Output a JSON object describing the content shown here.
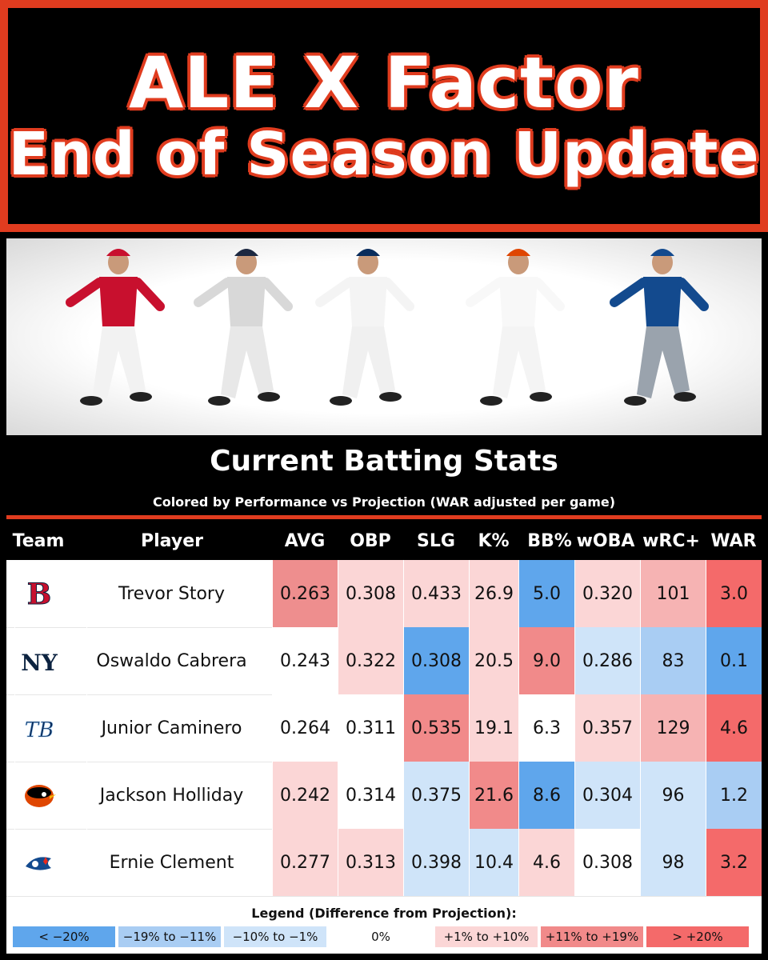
{
  "title": {
    "line1": "ALE X Factor",
    "line2": "End of Season Update"
  },
  "banner": {
    "players": [
      {
        "name": "Trevor Story",
        "jersey": "#c8102e",
        "cap": "#c8102e",
        "pants": "#f2f2f2"
      },
      {
        "name": "Oswaldo Cabrera",
        "jersey": "#d8d8d8",
        "cap": "#1c2841",
        "pants": "#e8e8e8"
      },
      {
        "name": "Junior Caminero",
        "jersey": "#f4f4f4",
        "cap": "#092c5c",
        "pants": "#f0f0f0"
      },
      {
        "name": "Jackson Holliday",
        "jersey": "#f8f8f8",
        "cap": "#df4601",
        "pants": "#f4f4f4"
      },
      {
        "name": "Ernie Clement",
        "jersey": "#134a8e",
        "cap": "#134a8e",
        "pants": "#9aa3ad"
      }
    ]
  },
  "subtitle": "Current Batting Stats",
  "caption": "Colored by Performance vs Projection (WAR adjusted per game)",
  "columns": [
    "Team",
    "Player",
    "AVG",
    "OBP",
    "SLG",
    "K%",
    "BB%",
    "wOBA",
    "wRC+",
    "WAR"
  ],
  "rows": [
    {
      "team": "red-sox-logo",
      "player": "Trevor Story",
      "stats": [
        "0.263",
        "0.308",
        "0.433",
        "26.9",
        "5.0",
        "0.320",
        "101",
        "3.0"
      ],
      "colors": [
        "#ee8e8e",
        "#fbd6d6",
        "#fbd6d6",
        "#fbd6d6",
        "#5fa6ec",
        "#fbd6d6",
        "#f6b3b3",
        "#f46a6a"
      ]
    },
    {
      "team": "yankees-logo",
      "player": "Oswaldo Cabrera",
      "stats": [
        "0.243",
        "0.322",
        "0.308",
        "20.5",
        "9.0",
        "0.286",
        "83",
        "0.1"
      ],
      "colors": [
        "#ffffff",
        "#fbd6d6",
        "#5fa6ec",
        "#fbd6d6",
        "#f18a8a",
        "#cfe4f9",
        "#a9cdf3",
        "#5fa6ec"
      ]
    },
    {
      "team": "rays-logo",
      "player": "Junior Caminero",
      "stats": [
        "0.264",
        "0.311",
        "0.535",
        "19.1",
        "6.3",
        "0.357",
        "129",
        "4.6"
      ],
      "colors": [
        "#ffffff",
        "#ffffff",
        "#f18a8a",
        "#fbd6d6",
        "#ffffff",
        "#fbd6d6",
        "#f6b3b3",
        "#f46a6a"
      ]
    },
    {
      "team": "orioles-logo",
      "player": "Jackson Holliday",
      "stats": [
        "0.242",
        "0.314",
        "0.375",
        "21.6",
        "8.6",
        "0.304",
        "96",
        "1.2"
      ],
      "colors": [
        "#fbd6d6",
        "#ffffff",
        "#cfe4f9",
        "#f18a8a",
        "#5fa6ec",
        "#cfe4f9",
        "#cfe4f9",
        "#a9cdf3"
      ]
    },
    {
      "team": "blue-jays-logo",
      "player": "Ernie Clement",
      "stats": [
        "0.277",
        "0.313",
        "0.398",
        "10.4",
        "4.6",
        "0.308",
        "98",
        "3.2"
      ],
      "colors": [
        "#fbd6d6",
        "#fbd6d6",
        "#cfe4f9",
        "#cfe4f9",
        "#fbd6d6",
        "#ffffff",
        "#cfe4f9",
        "#f46a6a"
      ]
    }
  ],
  "legend": {
    "title": "Legend (Difference from Projection):",
    "items": [
      {
        "label": "< −20%",
        "color": "#5fa6ec"
      },
      {
        "label": "−19% to −11%",
        "color": "#a9cdf3"
      },
      {
        "label": "−10% to −1%",
        "color": "#cfe4f9"
      },
      {
        "label": "0%",
        "color": "#ffffff"
      },
      {
        "label": "+1% to +10%",
        "color": "#fbd6d6"
      },
      {
        "label": "+11% to +19%",
        "color": "#f18a8a"
      },
      {
        "label": "> +20%",
        "color": "#f46a6a"
      }
    ]
  }
}
